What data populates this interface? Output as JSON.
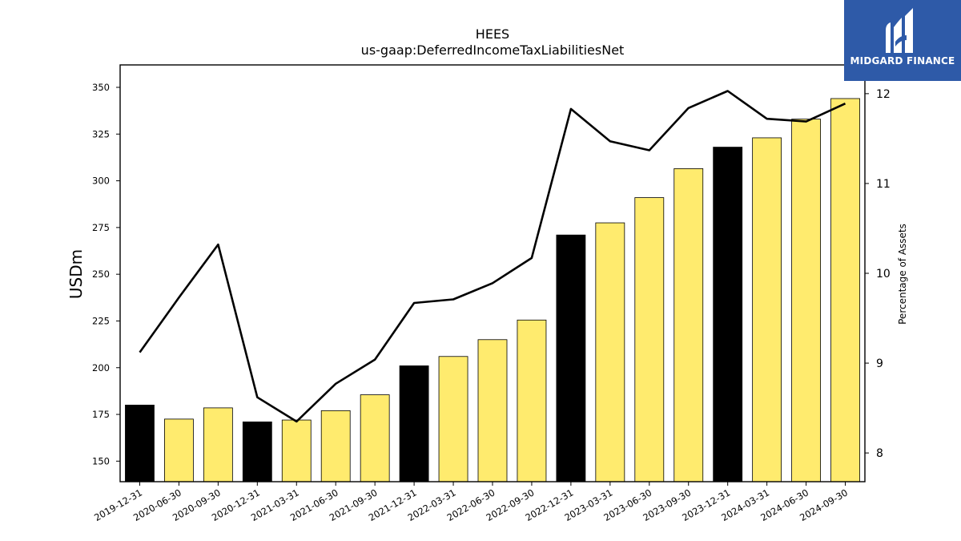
{
  "chart_data": {
    "type": "bar",
    "title": "HEES",
    "subtitle": "us-gaap:DeferredIncomeTaxLiabilitiesNet",
    "ylabel": "USDm",
    "y2label": "Percentage of Assets",
    "ylim": [
      139,
      362
    ],
    "y2lim": [
      7.68,
      12.32
    ],
    "yticks": [
      150,
      175,
      200,
      225,
      250,
      275,
      300,
      325,
      350
    ],
    "y2ticks": [
      8,
      9,
      10,
      11,
      12
    ],
    "categories": [
      "2019-12-31",
      "2020-06-30",
      "2020-09-30",
      "2020-12-31",
      "2021-03-31",
      "2021-06-30",
      "2021-09-30",
      "2021-12-31",
      "2022-03-31",
      "2022-06-30",
      "2022-09-30",
      "2022-12-31",
      "2023-03-31",
      "2023-06-30",
      "2023-09-30",
      "2023-12-31",
      "2024-03-31",
      "2024-06-30",
      "2024-09-30"
    ],
    "series": [
      {
        "values": [
          180,
          172.5,
          178.5,
          171,
          172,
          177,
          185.5,
          201,
          206,
          215,
          225.5,
          271,
          277.5,
          291,
          306.5,
          318,
          323,
          333,
          344
        ]
      },
      {
        "axis": "right",
        "values": [
          9.12,
          9.73,
          10.32,
          8.62,
          8.35,
          8.77,
          9.04,
          9.67,
          9.71,
          9.89,
          10.17,
          11.83,
          11.47,
          11.37,
          11.84,
          12.03,
          11.72,
          11.69,
          11.89
        ]
      }
    ],
    "bar_colors": [
      "#000000",
      "#ffeb6e",
      "#ffeb6e",
      "#000000",
      "#ffeb6e",
      "#ffeb6e",
      "#ffeb6e",
      "#000000",
      "#ffeb6e",
      "#ffeb6e",
      "#ffeb6e",
      "#000000",
      "#ffeb6e",
      "#ffeb6e",
      "#ffeb6e",
      "#000000",
      "#ffeb6e",
      "#ffeb6e",
      "#ffeb6e"
    ],
    "line_color": "#000000",
    "grid": false
  },
  "logo": {
    "text": "MIDGARD FINANCE",
    "icon": "midgard-logo-icon",
    "background": "#2e5aa8"
  }
}
